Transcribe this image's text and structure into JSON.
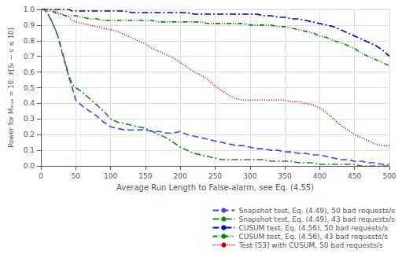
{
  "chart_data": {
    "type": "line",
    "xlabel": "Average Run Length to False-alarm, see Eq. (4.55)",
    "ylabel": "Power for Mₘₐₓ = 10: ℙ[Sₜ − ν ≤ 10]",
    "xlim": [
      0,
      500
    ],
    "ylim": [
      0,
      1.0
    ],
    "xticks": [
      0,
      50,
      100,
      150,
      200,
      250,
      300,
      350,
      400,
      450,
      500
    ],
    "yticks": [
      {
        "value": 0,
        "label": "0.0"
      },
      0.1,
      0.2,
      0.3,
      0.4,
      0.5,
      0.6,
      0.7,
      0.8,
      0.9,
      {
        "value": 1.0,
        "label": "1.0"
      }
    ],
    "grid": true,
    "legend": "lower right",
    "x": [
      1,
      5,
      10,
      15,
      20,
      25,
      30,
      35,
      40,
      45,
      50,
      60,
      70,
      80,
      90,
      100,
      110,
      120,
      130,
      140,
      150,
      160,
      170,
      180,
      190,
      200,
      210,
      220,
      230,
      240,
      250,
      260,
      270,
      280,
      290,
      300,
      310,
      320,
      330,
      340,
      350,
      360,
      370,
      380,
      390,
      400,
      410,
      420,
      430,
      440,
      450,
      460,
      470,
      480,
      490,
      500
    ],
    "series": [
      {
        "name": "Snapshot test, Eq. (4.49), 50 bad requests/s",
        "color": "#4444ff",
        "line_style": "dashed",
        "values": [
          1.0,
          1.0,
          0.97,
          0.93,
          0.88,
          0.82,
          0.73,
          0.65,
          0.57,
          0.5,
          0.42,
          0.38,
          0.35,
          0.32,
          0.28,
          0.25,
          0.24,
          0.23,
          0.23,
          0.23,
          0.23,
          0.22,
          0.22,
          0.21,
          0.21,
          0.22,
          0.2,
          0.19,
          0.18,
          0.17,
          0.16,
          0.15,
          0.14,
          0.13,
          0.13,
          0.12,
          0.11,
          0.11,
          0.1,
          0.1,
          0.09,
          0.09,
          0.08,
          0.08,
          0.07,
          0.07,
          0.06,
          0.05,
          0.04,
          0.04,
          0.03,
          0.03,
          0.02,
          0.02,
          0.01,
          0.01
        ]
      },
      {
        "name": "Snapshot test, Eq. (4.49), 43 bad requests/s",
        "color": "#228822",
        "line_style": "dashdot",
        "values": [
          1.0,
          1.0,
          0.97,
          0.93,
          0.88,
          0.82,
          0.74,
          0.66,
          0.58,
          0.52,
          0.5,
          0.47,
          0.43,
          0.39,
          0.35,
          0.3,
          0.28,
          0.27,
          0.26,
          0.25,
          0.24,
          0.22,
          0.2,
          0.18,
          0.15,
          0.12,
          0.1,
          0.08,
          0.07,
          0.06,
          0.05,
          0.04,
          0.04,
          0.04,
          0.04,
          0.04,
          0.04,
          0.04,
          0.03,
          0.03,
          0.03,
          0.03,
          0.02,
          0.02,
          0.02,
          0.01,
          0.01,
          0.01,
          0.01,
          0.01,
          0.01,
          0.0,
          0.0,
          0.0,
          0.0,
          0.0
        ]
      },
      {
        "name": "CUSUM test, Eq. (4.56), 50 bad requests/s",
        "color": "#0000cc",
        "line_style": "dashdot",
        "values": [
          1.0,
          1.0,
          1.0,
          1.0,
          1.0,
          1.0,
          1.0,
          1.0,
          1.0,
          0.99,
          0.99,
          0.99,
          0.99,
          0.99,
          0.99,
          0.99,
          0.99,
          0.99,
          0.98,
          0.98,
          0.98,
          0.98,
          0.98,
          0.98,
          0.98,
          0.98,
          0.98,
          0.97,
          0.97,
          0.97,
          0.97,
          0.97,
          0.97,
          0.97,
          0.97,
          0.97,
          0.97,
          0.96,
          0.96,
          0.95,
          0.95,
          0.94,
          0.94,
          0.93,
          0.92,
          0.91,
          0.9,
          0.89,
          0.87,
          0.85,
          0.83,
          0.81,
          0.79,
          0.77,
          0.74,
          0.7
        ]
      },
      {
        "name": "CUSUM test, Eq. (4.56), 43 bad requests/s",
        "color": "#008800",
        "line_style": "dashdotdot",
        "values": [
          1.0,
          1.0,
          0.99,
          0.99,
          0.98,
          0.97,
          0.97,
          0.96,
          0.96,
          0.96,
          0.96,
          0.95,
          0.94,
          0.94,
          0.93,
          0.93,
          0.93,
          0.93,
          0.93,
          0.93,
          0.93,
          0.93,
          0.92,
          0.92,
          0.92,
          0.92,
          0.92,
          0.92,
          0.92,
          0.91,
          0.91,
          0.91,
          0.91,
          0.91,
          0.91,
          0.9,
          0.9,
          0.9,
          0.9,
          0.89,
          0.89,
          0.88,
          0.87,
          0.86,
          0.85,
          0.83,
          0.82,
          0.8,
          0.79,
          0.77,
          0.75,
          0.72,
          0.7,
          0.68,
          0.66,
          0.64
        ]
      },
      {
        "name": "Test [53] with CUSUM, 50 bad requests/s",
        "color": "#cc0000",
        "line_style": "dotted",
        "values": [
          1.0,
          1.0,
          1.0,
          1.0,
          0.99,
          0.98,
          0.97,
          0.96,
          0.95,
          0.93,
          0.92,
          0.91,
          0.9,
          0.89,
          0.88,
          0.87,
          0.86,
          0.84,
          0.82,
          0.8,
          0.78,
          0.75,
          0.73,
          0.71,
          0.69,
          0.66,
          0.63,
          0.6,
          0.58,
          0.55,
          0.51,
          0.48,
          0.45,
          0.43,
          0.42,
          0.42,
          0.42,
          0.42,
          0.42,
          0.42,
          0.42,
          0.41,
          0.41,
          0.4,
          0.39,
          0.37,
          0.34,
          0.3,
          0.26,
          0.23,
          0.2,
          0.18,
          0.16,
          0.14,
          0.13,
          0.13
        ]
      }
    ]
  }
}
